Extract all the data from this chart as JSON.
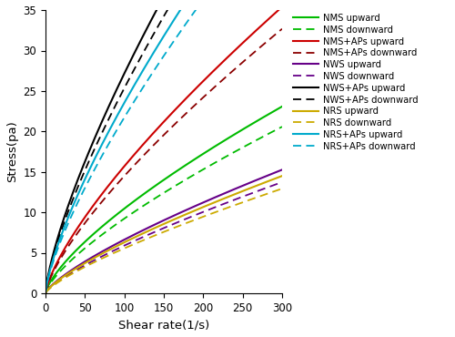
{
  "xlabel": "Shear rate(1/s)",
  "ylabel": "Stress(pa)",
  "xlim": [
    0,
    300
  ],
  "ylim": [
    0,
    35
  ],
  "yticks": [
    0,
    5,
    10,
    15,
    20,
    25,
    30,
    35
  ],
  "xticks": [
    0,
    50,
    100,
    150,
    200,
    250,
    300
  ],
  "curves": [
    {
      "label": "NMS upward",
      "color": "#00bb00",
      "ls": "-",
      "K": 0.38,
      "n": 0.72
    },
    {
      "label": "NMS downward",
      "color": "#00bb00",
      "ls": "--",
      "K": 0.32,
      "n": 0.73
    },
    {
      "label": "NMS+APs upward",
      "color": "#cc0000",
      "ls": "-",
      "K": 0.52,
      "n": 0.74
    },
    {
      "label": "NMS+APs downward",
      "color": "#8b0000",
      "ls": "--",
      "K": 0.48,
      "n": 0.74
    },
    {
      "label": "NWS upward",
      "color": "#660088",
      "ls": "-",
      "K": 0.2,
      "n": 0.76
    },
    {
      "label": "NWS downward",
      "color": "#660088",
      "ls": "--",
      "K": 0.17,
      "n": 0.77
    },
    {
      "label": "NWS+APs upward",
      "color": "#000000",
      "ls": "-",
      "K": 0.9,
      "n": 0.74
    },
    {
      "label": "NWS+APs downward",
      "color": "#000000",
      "ls": "--",
      "K": 0.84,
      "n": 0.74
    },
    {
      "label": "NRS upward",
      "color": "#ccaa00",
      "ls": "-",
      "K": 0.19,
      "n": 0.76
    },
    {
      "label": "NRS downward",
      "color": "#ccaa00",
      "ls": "--",
      "K": 0.16,
      "n": 0.77
    },
    {
      "label": "NRS+APs upward",
      "color": "#00aacc",
      "ls": "-",
      "K": 0.78,
      "n": 0.74
    },
    {
      "label": "NRS+APs downward",
      "color": "#00aacc",
      "ls": "--",
      "K": 0.72,
      "n": 0.74
    }
  ],
  "legend_fontsize": 7.2,
  "axis_fontsize": 9.5,
  "tick_fontsize": 8.5,
  "lw_solid": 1.5,
  "lw_dash": 1.3
}
